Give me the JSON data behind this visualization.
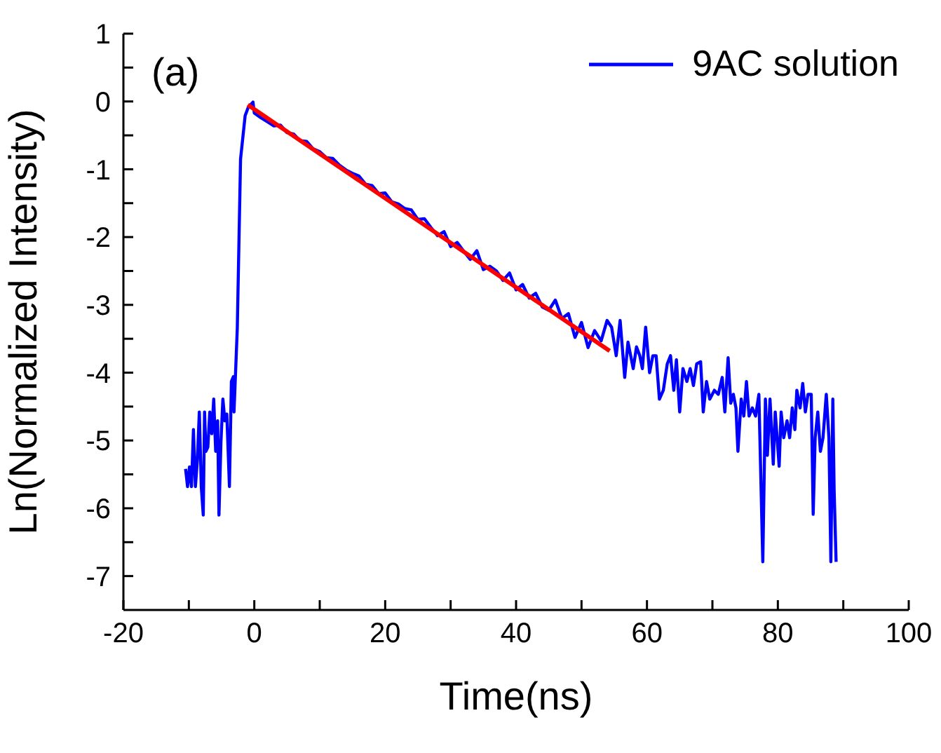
{
  "chart_data": {
    "type": "line",
    "xlabel": "Time(ns)",
    "ylabel": "Ln(Normalized Intensity)",
    "annotations": [
      "(a)"
    ],
    "xlim": [
      -20,
      100
    ],
    "ylim": [
      -7.5,
      1
    ],
    "xticks": [
      -20,
      {
        "value": -10,
        "label": null
      },
      0,
      {
        "value": 10,
        "label": null
      },
      20,
      {
        "value": 30,
        "label": null
      },
      40,
      {
        "value": 50,
        "label": null
      },
      60,
      {
        "value": 70,
        "label": null
      },
      80,
      {
        "value": 90,
        "label": null
      },
      100
    ],
    "yticks": [
      -7,
      {
        "value": -6.5,
        "label": null
      },
      -6,
      {
        "value": -5.5,
        "label": null
      },
      -5,
      {
        "value": -4.5,
        "label": null
      },
      -4,
      {
        "value": -3.5,
        "label": null
      },
      -3,
      {
        "value": -2.5,
        "label": null
      },
      -2,
      {
        "value": -1.5,
        "label": null
      },
      -1,
      {
        "value": -0.5,
        "label": null
      },
      0,
      {
        "value": 0.5,
        "label": null
      },
      1
    ],
    "legend": "top right",
    "line_style": "solid",
    "series": [
      {
        "name": "9AC solution",
        "color": "#0000ff",
        "x": [
          -10.5,
          -10.2,
          -9.9,
          -9.6,
          -9.3,
          -9.0,
          -8.7,
          -8.4,
          -8.1,
          -7.8,
          -7.6,
          -7.4,
          -7.1,
          -6.8,
          -6.5,
          -6.2,
          -5.9,
          -5.6,
          -5.4,
          -5.1,
          -4.8,
          -4.5,
          -4.2,
          -3.8,
          -3.5,
          -3.2,
          -3.1,
          -2.6,
          -2.1,
          -1.4,
          -0.9,
          -0.2,
          0,
          1,
          2,
          3,
          4,
          5,
          6,
          7,
          8,
          9,
          10,
          11,
          12,
          13,
          14,
          15,
          16,
          17,
          18,
          19,
          20,
          21,
          22,
          23,
          24,
          25,
          26,
          27,
          28,
          29,
          30,
          31,
          32,
          33,
          34,
          35,
          36,
          37,
          38,
          39,
          40,
          41,
          42,
          43,
          44,
          45,
          46,
          47,
          48,
          49,
          50,
          51,
          52,
          53,
          53.9,
          54.6,
          55.3,
          55.9,
          56.6,
          57.1,
          57.9,
          58.4,
          58.9,
          59.3,
          59.8,
          60.4,
          60.9,
          61.4,
          61.9,
          62.5,
          63.1,
          63.6,
          64.1,
          64.5,
          65.0,
          65.5,
          66.1,
          66.6,
          67.1,
          67.6,
          68.2,
          68.6,
          69.1,
          69.6,
          70.3,
          70.9,
          71.5,
          71.9,
          72.4,
          72.8,
          73.2,
          73.6,
          73.9,
          74.4,
          74.8,
          75.2,
          75.6,
          76.1,
          76.6,
          77.1,
          77.7,
          78.1,
          78.4,
          78.8,
          79.3,
          79.6,
          80.2,
          80.5,
          80.9,
          81.4,
          81.8,
          82.2,
          82.6,
          82.9,
          83.4,
          83.8,
          84.2,
          84.6,
          85.1,
          85.4,
          85.7,
          86.1,
          86.5,
          86.9,
          87.4,
          87.8,
          88.1,
          88.4,
          88.6,
          88.9
        ],
        "values": [
          -5.42,
          -5.68,
          -5.39,
          -5.68,
          -4.84,
          -5.68,
          -5.29,
          -4.58,
          -5.68,
          -6.1,
          -4.58,
          -5.16,
          -5.1,
          -4.58,
          -4.9,
          -4.39,
          -5.16,
          -4.71,
          -6.1,
          -5.03,
          -4.39,
          -4.71,
          -4.61,
          -5.68,
          -4.13,
          -4.06,
          -4.58,
          -3.35,
          -0.85,
          -0.21,
          -0.08,
          -0.01,
          -0.17,
          -0.24,
          -0.3,
          -0.36,
          -0.35,
          -0.46,
          -0.48,
          -0.58,
          -0.59,
          -0.7,
          -0.74,
          -0.83,
          -0.84,
          -0.94,
          -1.01,
          -1.06,
          -1.1,
          -1.22,
          -1.24,
          -1.36,
          -1.35,
          -1.48,
          -1.51,
          -1.58,
          -1.6,
          -1.74,
          -1.73,
          -1.86,
          -1.98,
          -1.92,
          -2.14,
          -2.08,
          -2.21,
          -2.33,
          -2.2,
          -2.48,
          -2.43,
          -2.5,
          -2.64,
          -2.53,
          -2.78,
          -2.7,
          -2.9,
          -2.83,
          -3.03,
          -3.08,
          -2.93,
          -3.2,
          -3.13,
          -3.48,
          -3.26,
          -3.63,
          -3.38,
          -3.53,
          -3.23,
          -3.33,
          -3.75,
          -3.23,
          -4.07,
          -3.55,
          -3.94,
          -3.62,
          -3.75,
          -3.94,
          -3.33,
          -4.0,
          -3.75,
          -3.75,
          -4.39,
          -4.26,
          -3.87,
          -3.75,
          -4.26,
          -3.81,
          -4.58,
          -3.94,
          -4.13,
          -3.94,
          -4.19,
          -3.87,
          -3.84,
          -4.58,
          -4.13,
          -4.39,
          -4.26,
          -4.32,
          -4.07,
          -4.58,
          -3.78,
          -4.45,
          -4.32,
          -4.52,
          -5.16,
          -4.39,
          -4.64,
          -4.13,
          -4.64,
          -4.52,
          -4.64,
          -4.32,
          -6.79,
          -4.39,
          -5.22,
          -4.39,
          -5.35,
          -4.58,
          -5.38,
          -4.58,
          -4.96,
          -4.71,
          -4.96,
          -4.52,
          -4.84,
          -4.26,
          -4.52,
          -4.16,
          -4.58,
          -4.32,
          -4.32,
          -6.09,
          -4.96,
          -4.58,
          -5.16,
          -4.96,
          -4.32,
          -4.96,
          -6.79,
          -4.39,
          -5.73,
          -6.79
        ]
      },
      {
        "color": "#ff0000",
        "x": [
          -1,
          54.3
        ],
        "values": [
          -0.05,
          -3.68
        ]
      }
    ]
  }
}
